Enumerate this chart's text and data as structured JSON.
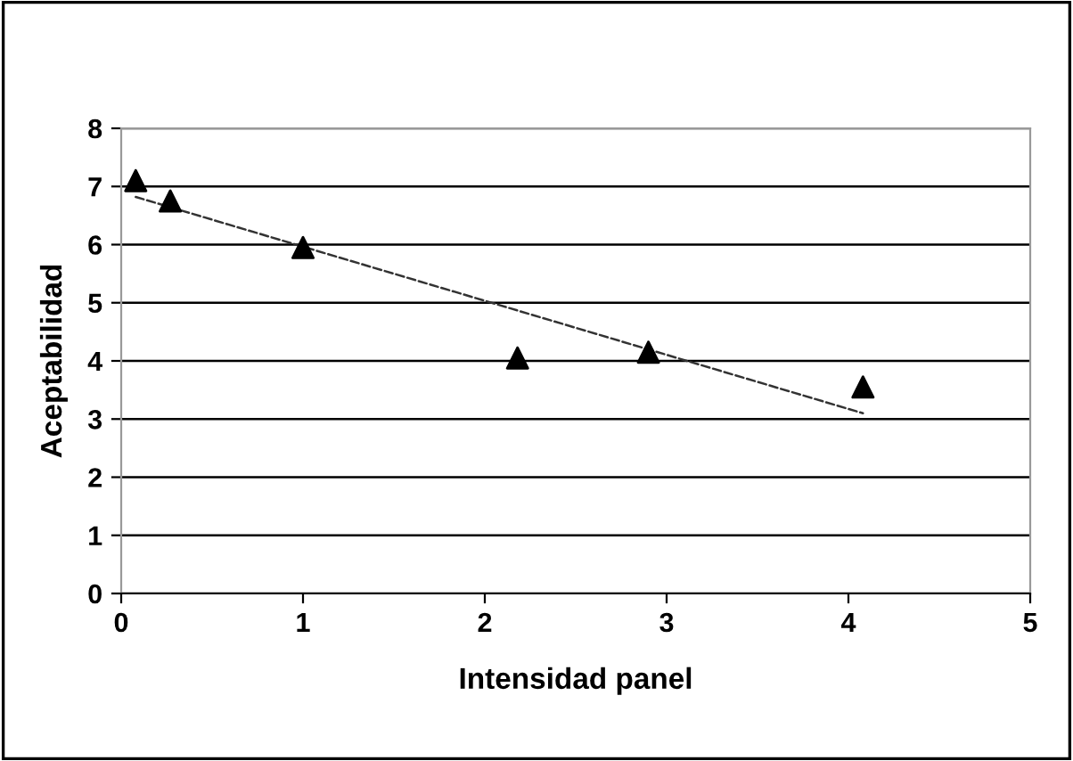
{
  "chart_data": {
    "type": "scatter",
    "xlabel": "Intensidad panel",
    "ylabel": "Aceptabilidad",
    "series": [
      {
        "color": "#000000",
        "marker": "triangle",
        "x": [
          0.08,
          0.27,
          1.0,
          2.18,
          2.9,
          4.08
        ],
        "values": [
          7.1,
          6.75,
          5.95,
          4.05,
          4.15,
          3.55
        ]
      },
      {
        "type": "line",
        "color": "#333333",
        "marker": "none",
        "line_style": "dashed",
        "x": [
          0.08,
          4.08
        ],
        "values": [
          6.82,
          3.1
        ]
      }
    ],
    "xlim": [
      0,
      5
    ],
    "xticks": [
      0,
      1,
      2,
      3,
      4,
      5
    ],
    "ylim": [
      0,
      8
    ],
    "yticks": [
      0,
      1,
      2,
      3,
      4,
      5,
      6,
      7,
      8
    ],
    "grid": "y",
    "legend": false
  }
}
